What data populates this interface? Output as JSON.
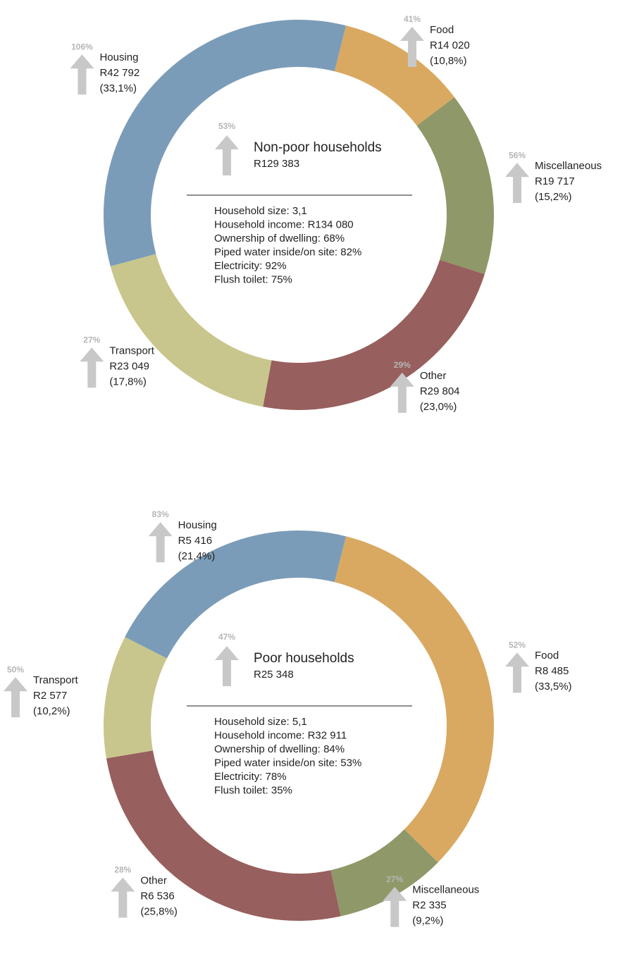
{
  "chart_data": [
    {
      "type": "donut",
      "title": "Non-poor households",
      "total": {
        "value": 129383,
        "label": "R129 383"
      },
      "total_change": {
        "value": 53,
        "label": "53%"
      },
      "notes": [
        "Household size: 3,1",
        "Household income: R134 080",
        "Ownership of dwelling: 68%",
        "Piped water inside/on site: 82%",
        "Electricity: 92%",
        "Flush toilet: 75%"
      ],
      "categories": [
        "Food",
        "Miscellaneous",
        "Other",
        "Transport",
        "Housing"
      ],
      "colors": [
        "#d9a962",
        "#8f9868",
        "#975f5d",
        "#c8c68c",
        "#7b9cb8"
      ],
      "values": [
        10.8,
        15.2,
        23.0,
        17.8,
        33.1
      ],
      "value_labels": [
        "(10,8%)",
        "(15,2%)",
        "(23,0%)",
        "(17,8%)",
        "(33,1%)"
      ],
      "amounts": [
        {
          "value": 14020,
          "label": "R14 020"
        },
        {
          "value": 19717,
          "label": "R19 717"
        },
        {
          "value": 29804,
          "label": "R29 804"
        },
        {
          "value": 23049,
          "label": "R23 049"
        },
        {
          "value": 42792,
          "label": "R42 792"
        }
      ],
      "changes": [
        {
          "value": 41,
          "label": "41%"
        },
        {
          "value": 56,
          "label": "56%"
        },
        {
          "value": 29,
          "label": "29%"
        },
        {
          "value": 27,
          "label": "27%"
        },
        {
          "value": 106,
          "label": "106%"
        }
      ]
    },
    {
      "type": "donut",
      "title": "Poor households",
      "total": {
        "value": 25348,
        "label": "R25 348"
      },
      "total_change": {
        "value": 47,
        "label": "47%"
      },
      "notes": [
        "Household size: 5,1",
        "Household income: R32 911",
        "Ownership of dwelling: 84%",
        "Piped water inside/on site: 53%",
        "Electricity: 78%",
        "Flush toilet: 35%"
      ],
      "categories": [
        "Food",
        "Miscellaneous",
        "Other",
        "Transport",
        "Housing"
      ],
      "colors": [
        "#d9a962",
        "#8f9868",
        "#975f5d",
        "#c8c68c",
        "#7b9cb8"
      ],
      "values": [
        33.5,
        9.2,
        25.8,
        10.2,
        21.4
      ],
      "value_labels": [
        "(33,5%)",
        "(9,2%)",
        "(25,8%)",
        "(10,2%)",
        "(21,4%)"
      ],
      "amounts": [
        {
          "value": 8485,
          "label": "R8 485"
        },
        {
          "value": 2335,
          "label": "R2 335"
        },
        {
          "value": 6536,
          "label": "R6 536"
        },
        {
          "value": 2577,
          "label": "R2 577"
        },
        {
          "value": 5416,
          "label": "R5 416"
        }
      ],
      "changes": [
        {
          "value": 52,
          "label": "52%"
        },
        {
          "value": 27,
          "label": "27%"
        },
        {
          "value": 28,
          "label": "28%"
        },
        {
          "value": 50,
          "label": "50%"
        },
        {
          "value": 83,
          "label": "83%"
        }
      ]
    }
  ]
}
